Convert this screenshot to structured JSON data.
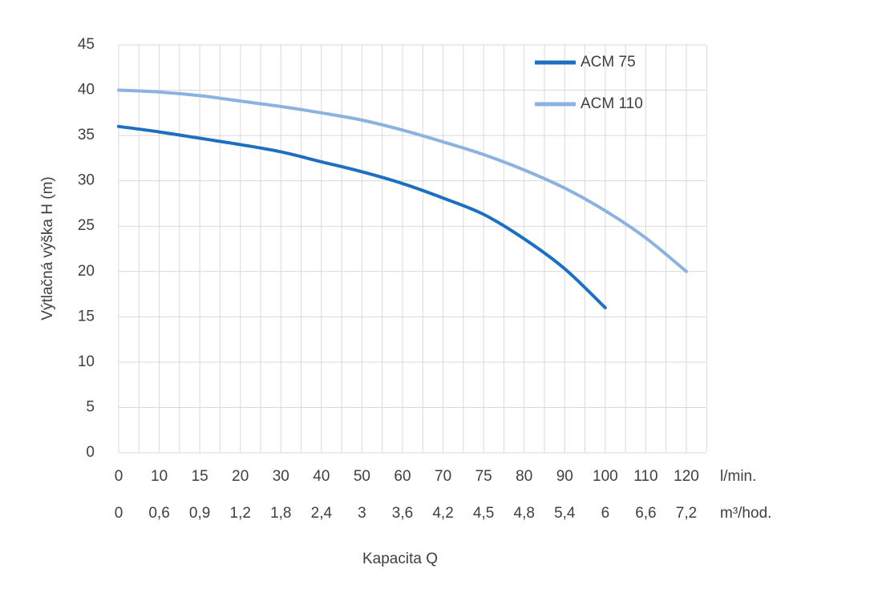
{
  "chart_data": {
    "type": "line",
    "y_label": "Výtlačná výška H (m)",
    "x_label": "Kapacita Q",
    "categories": [
      "0",
      "10",
      "15",
      "20",
      "30",
      "40",
      "50",
      "60",
      "70",
      "75",
      "80",
      "90",
      "100",
      "110",
      "120"
    ],
    "x_unit": "l/min.",
    "categories2": [
      "0",
      "0,6",
      "0,9",
      "1,2",
      "1,8",
      "2,4",
      "3",
      "3,6",
      "4,2",
      "4,5",
      "4,8",
      "5,4",
      "6",
      "6,6",
      "7,2"
    ],
    "x2_unit": "m³/hod.",
    "series": [
      {
        "name": "ACM 75",
        "color": "#1f6fc0",
        "values": [
          36,
          35.4,
          34.7,
          34.0,
          33.2,
          32.1,
          31.0,
          29.7,
          28.1,
          26.3,
          23.6,
          20.3,
          16,
          null,
          null
        ]
      },
      {
        "name": "ACM 110",
        "color": "#8cb2e0",
        "values": [
          40,
          39.8,
          39.4,
          38.8,
          38.2,
          37.5,
          36.7,
          35.6,
          34.3,
          32.9,
          31.2,
          29.2,
          26.7,
          23.7,
          20
        ]
      }
    ],
    "ylim": [
      0,
      45
    ],
    "yticks": [
      0,
      5,
      10,
      15,
      20,
      25,
      30,
      35,
      40,
      45
    ],
    "grid": true
  }
}
